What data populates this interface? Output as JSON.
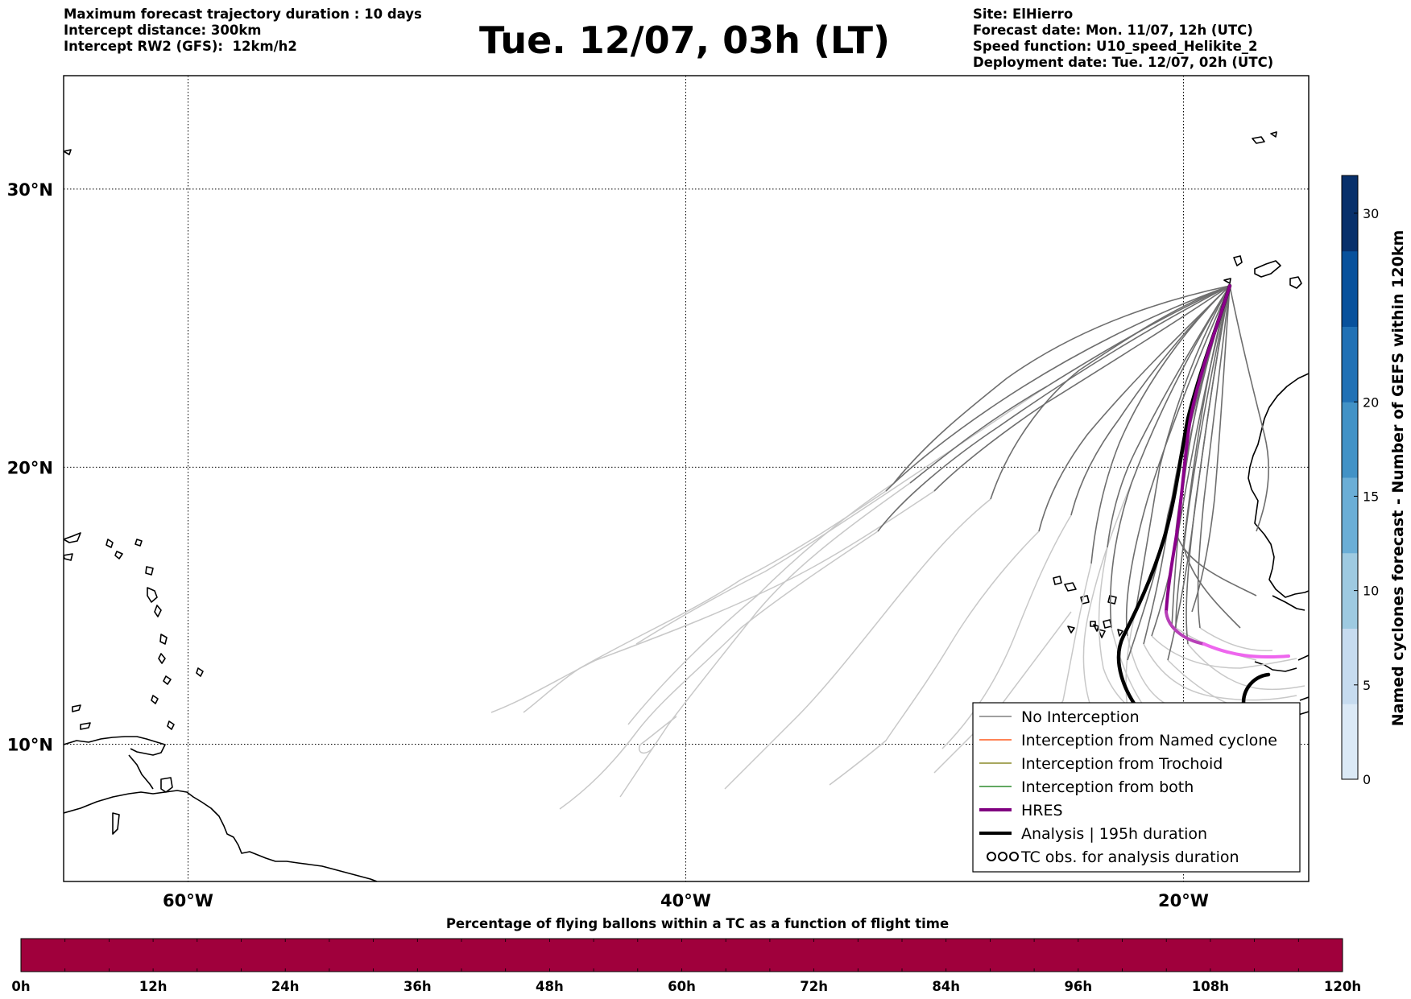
{
  "header": {
    "left": [
      "Maximum forecast trajectory duration : 10 days",
      "Intercept distance: 300km",
      "Intercept RW2 (GFS):  12km/h2"
    ],
    "title": "Tue. 12/07, 03h (LT)",
    "right": [
      "Site: ElHierro",
      "Forecast date: Mon. 11/07, 12h (UTC)",
      "Speed function: U10_speed_Helikite_2",
      "Deployment date: Tue. 12/07, 02h (UTC)"
    ]
  },
  "map": {
    "lon_range": [
      -65,
      15
    ],
    "lat_range": [
      5,
      35
    ],
    "lon_ticks": [
      {
        "value": -60,
        "label": "60°W"
      },
      {
        "value": -40,
        "label": "40°W"
      },
      {
        "value": -20,
        "label": "20°W"
      }
    ],
    "lat_ticks": [
      {
        "value": 30,
        "label": "30°N"
      },
      {
        "value": 20,
        "label": "20°N"
      },
      {
        "value": 10,
        "label": "10°N"
      }
    ],
    "gridlines": "dotted",
    "deployment_site": {
      "lon": -17.9,
      "lat": 27.7
    }
  },
  "colorbar_right": {
    "title": "Named cyclones forecast - Number of GEFS within 120km",
    "ticks": [
      "0",
      "5",
      "10",
      "15",
      "20",
      "30"
    ],
    "range": [
      0,
      32
    ],
    "colors": [
      "#dbe9f6",
      "#c6dbef",
      "#9ecae1",
      "#6baed6",
      "#4292c6",
      "#2171b5",
      "#08519c",
      "#08306b"
    ]
  },
  "legend": {
    "position": "lower-right",
    "items": [
      {
        "label": "No Interception",
        "color": "#808080",
        "style": "thin"
      },
      {
        "label": "Interception from Named cyclone",
        "color": "#ff5a1f",
        "style": "thin"
      },
      {
        "label": "Interception from Trochoid",
        "color": "#8c8c2a",
        "style": "thin"
      },
      {
        "label": "Interception from both",
        "color": "#2e8b2e",
        "style": "thin"
      },
      {
        "label": "HRES",
        "color": "#800080",
        "style": "thick"
      },
      {
        "label": "Analysis | 195h duration",
        "color": "#000000",
        "style": "thick"
      },
      {
        "label": "TC obs. for analysis duration",
        "color": "#000000",
        "style": "symbol"
      }
    ]
  },
  "bottom_bar": {
    "title": "Percentage of flying ballons within a TC as a function of flight time",
    "color": "#a0003c",
    "ticks": [
      "0h",
      "12h",
      "24h",
      "36h",
      "48h",
      "60h",
      "72h",
      "84h",
      "96h",
      "108h",
      "120h"
    ]
  }
}
